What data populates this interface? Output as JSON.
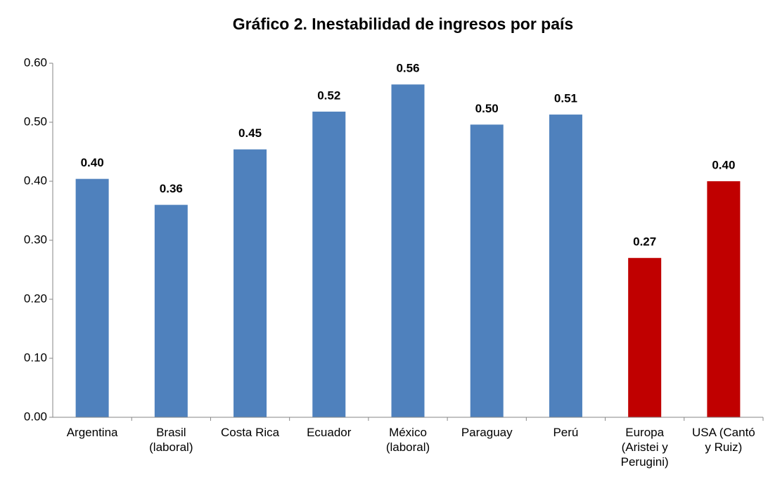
{
  "chart_data": {
    "type": "bar",
    "title": "Gráfico 2. Inestabilidad de ingresos por país",
    "categories": [
      "Argentina",
      "Brasil (laboral)",
      "Costa Rica",
      "Ecuador",
      "México (laboral)",
      "Paraguay",
      "Perú",
      "Europa (Aristei y Perugini)",
      "USA (Cantó y Ruiz)"
    ],
    "values": [
      0.404,
      0.36,
      0.454,
      0.518,
      0.564,
      0.496,
      0.513,
      0.27,
      0.4
    ],
    "value_labels": [
      "0.40",
      "0.36",
      "0.45",
      "0.52",
      "0.56",
      "0.50",
      "0.51",
      "0.27",
      "0.40"
    ],
    "colors": [
      "#4f81bd",
      "#4f81bd",
      "#4f81bd",
      "#4f81bd",
      "#4f81bd",
      "#4f81bd",
      "#4f81bd",
      "#c00000",
      "#c00000"
    ],
    "ylim": [
      0,
      0.6
    ],
    "yticks": [
      {
        "value": 0,
        "label": "0.00"
      },
      {
        "value": 0.1,
        "label": "0.10"
      },
      {
        "value": 0.2,
        "label": "0.20"
      },
      {
        "value": 0.3,
        "label": "0.30"
      },
      {
        "value": 0.4,
        "label": "0.40"
      },
      {
        "value": 0.5,
        "label": "0.50"
      },
      {
        "value": 0.6,
        "label": "0.60"
      }
    ],
    "grid": false
  }
}
